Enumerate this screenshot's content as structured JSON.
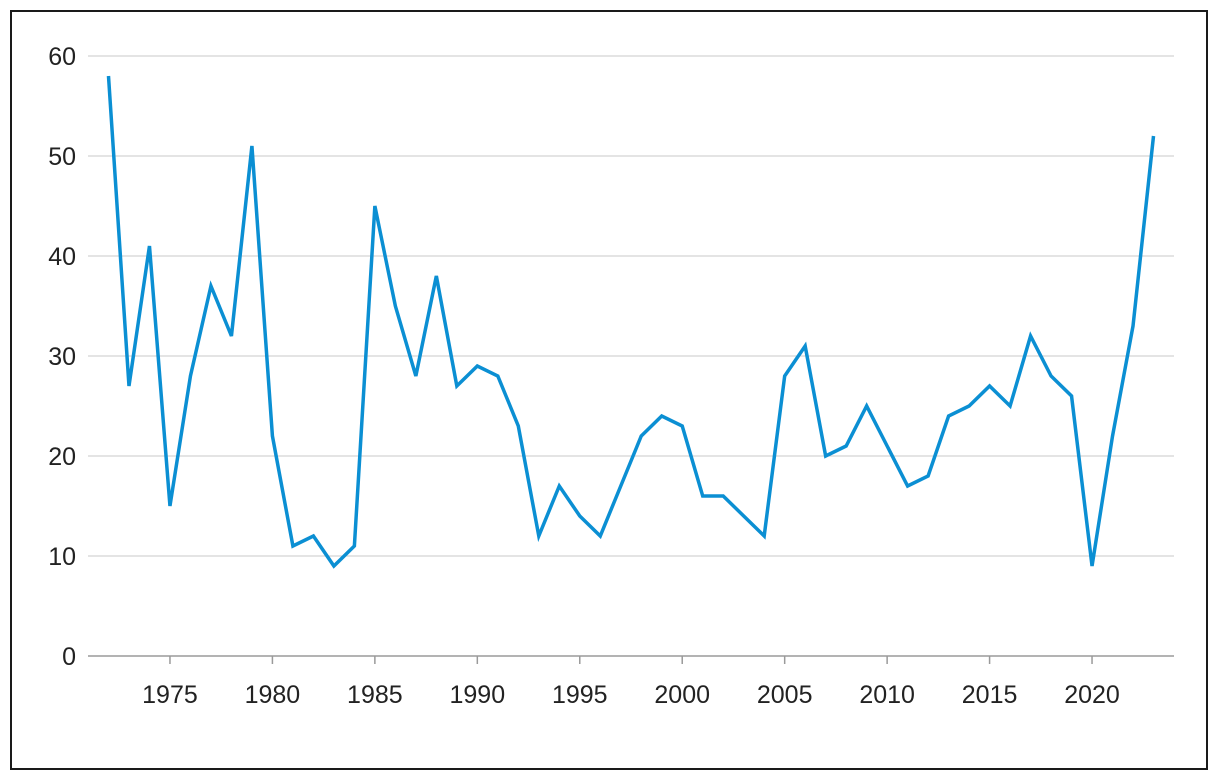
{
  "chart_data": {
    "type": "line",
    "title": "",
    "xlabel": "",
    "ylabel": "",
    "xlim": [
      1971,
      2024
    ],
    "ylim": [
      0,
      60
    ],
    "x_ticks": [
      1975,
      1980,
      1985,
      1990,
      1995,
      2000,
      2005,
      2010,
      2015,
      2020
    ],
    "y_ticks": [
      0,
      10,
      20,
      30,
      40,
      50,
      60
    ],
    "grid": "horizontal",
    "legend": "none",
    "series": [
      {
        "color": "#0b8fd3",
        "x": [
          1972,
          1973,
          1974,
          1975,
          1976,
          1977,
          1978,
          1979,
          1980,
          1981,
          1982,
          1983,
          1984,
          1985,
          1986,
          1987,
          1988,
          1989,
          1990,
          1991,
          1992,
          1993,
          1994,
          1995,
          1996,
          1997,
          1998,
          1999,
          2000,
          2001,
          2002,
          2003,
          2004,
          2005,
          2006,
          2007,
          2008,
          2009,
          2010,
          2011,
          2012,
          2013,
          2014,
          2015,
          2016,
          2017,
          2018,
          2019,
          2020,
          2021,
          2022,
          2023
        ],
        "values": [
          58,
          27,
          41,
          15,
          28,
          37,
          32,
          51,
          22,
          11,
          12,
          9,
          11,
          45,
          35,
          28,
          38,
          27,
          29,
          28,
          23,
          12,
          17,
          14,
          12,
          17,
          22,
          24,
          23,
          16,
          16,
          14,
          12,
          28,
          31,
          20,
          21,
          25,
          21,
          17,
          18,
          24,
          25,
          27,
          25,
          32,
          28,
          26,
          9,
          22,
          33,
          52
        ]
      }
    ]
  }
}
